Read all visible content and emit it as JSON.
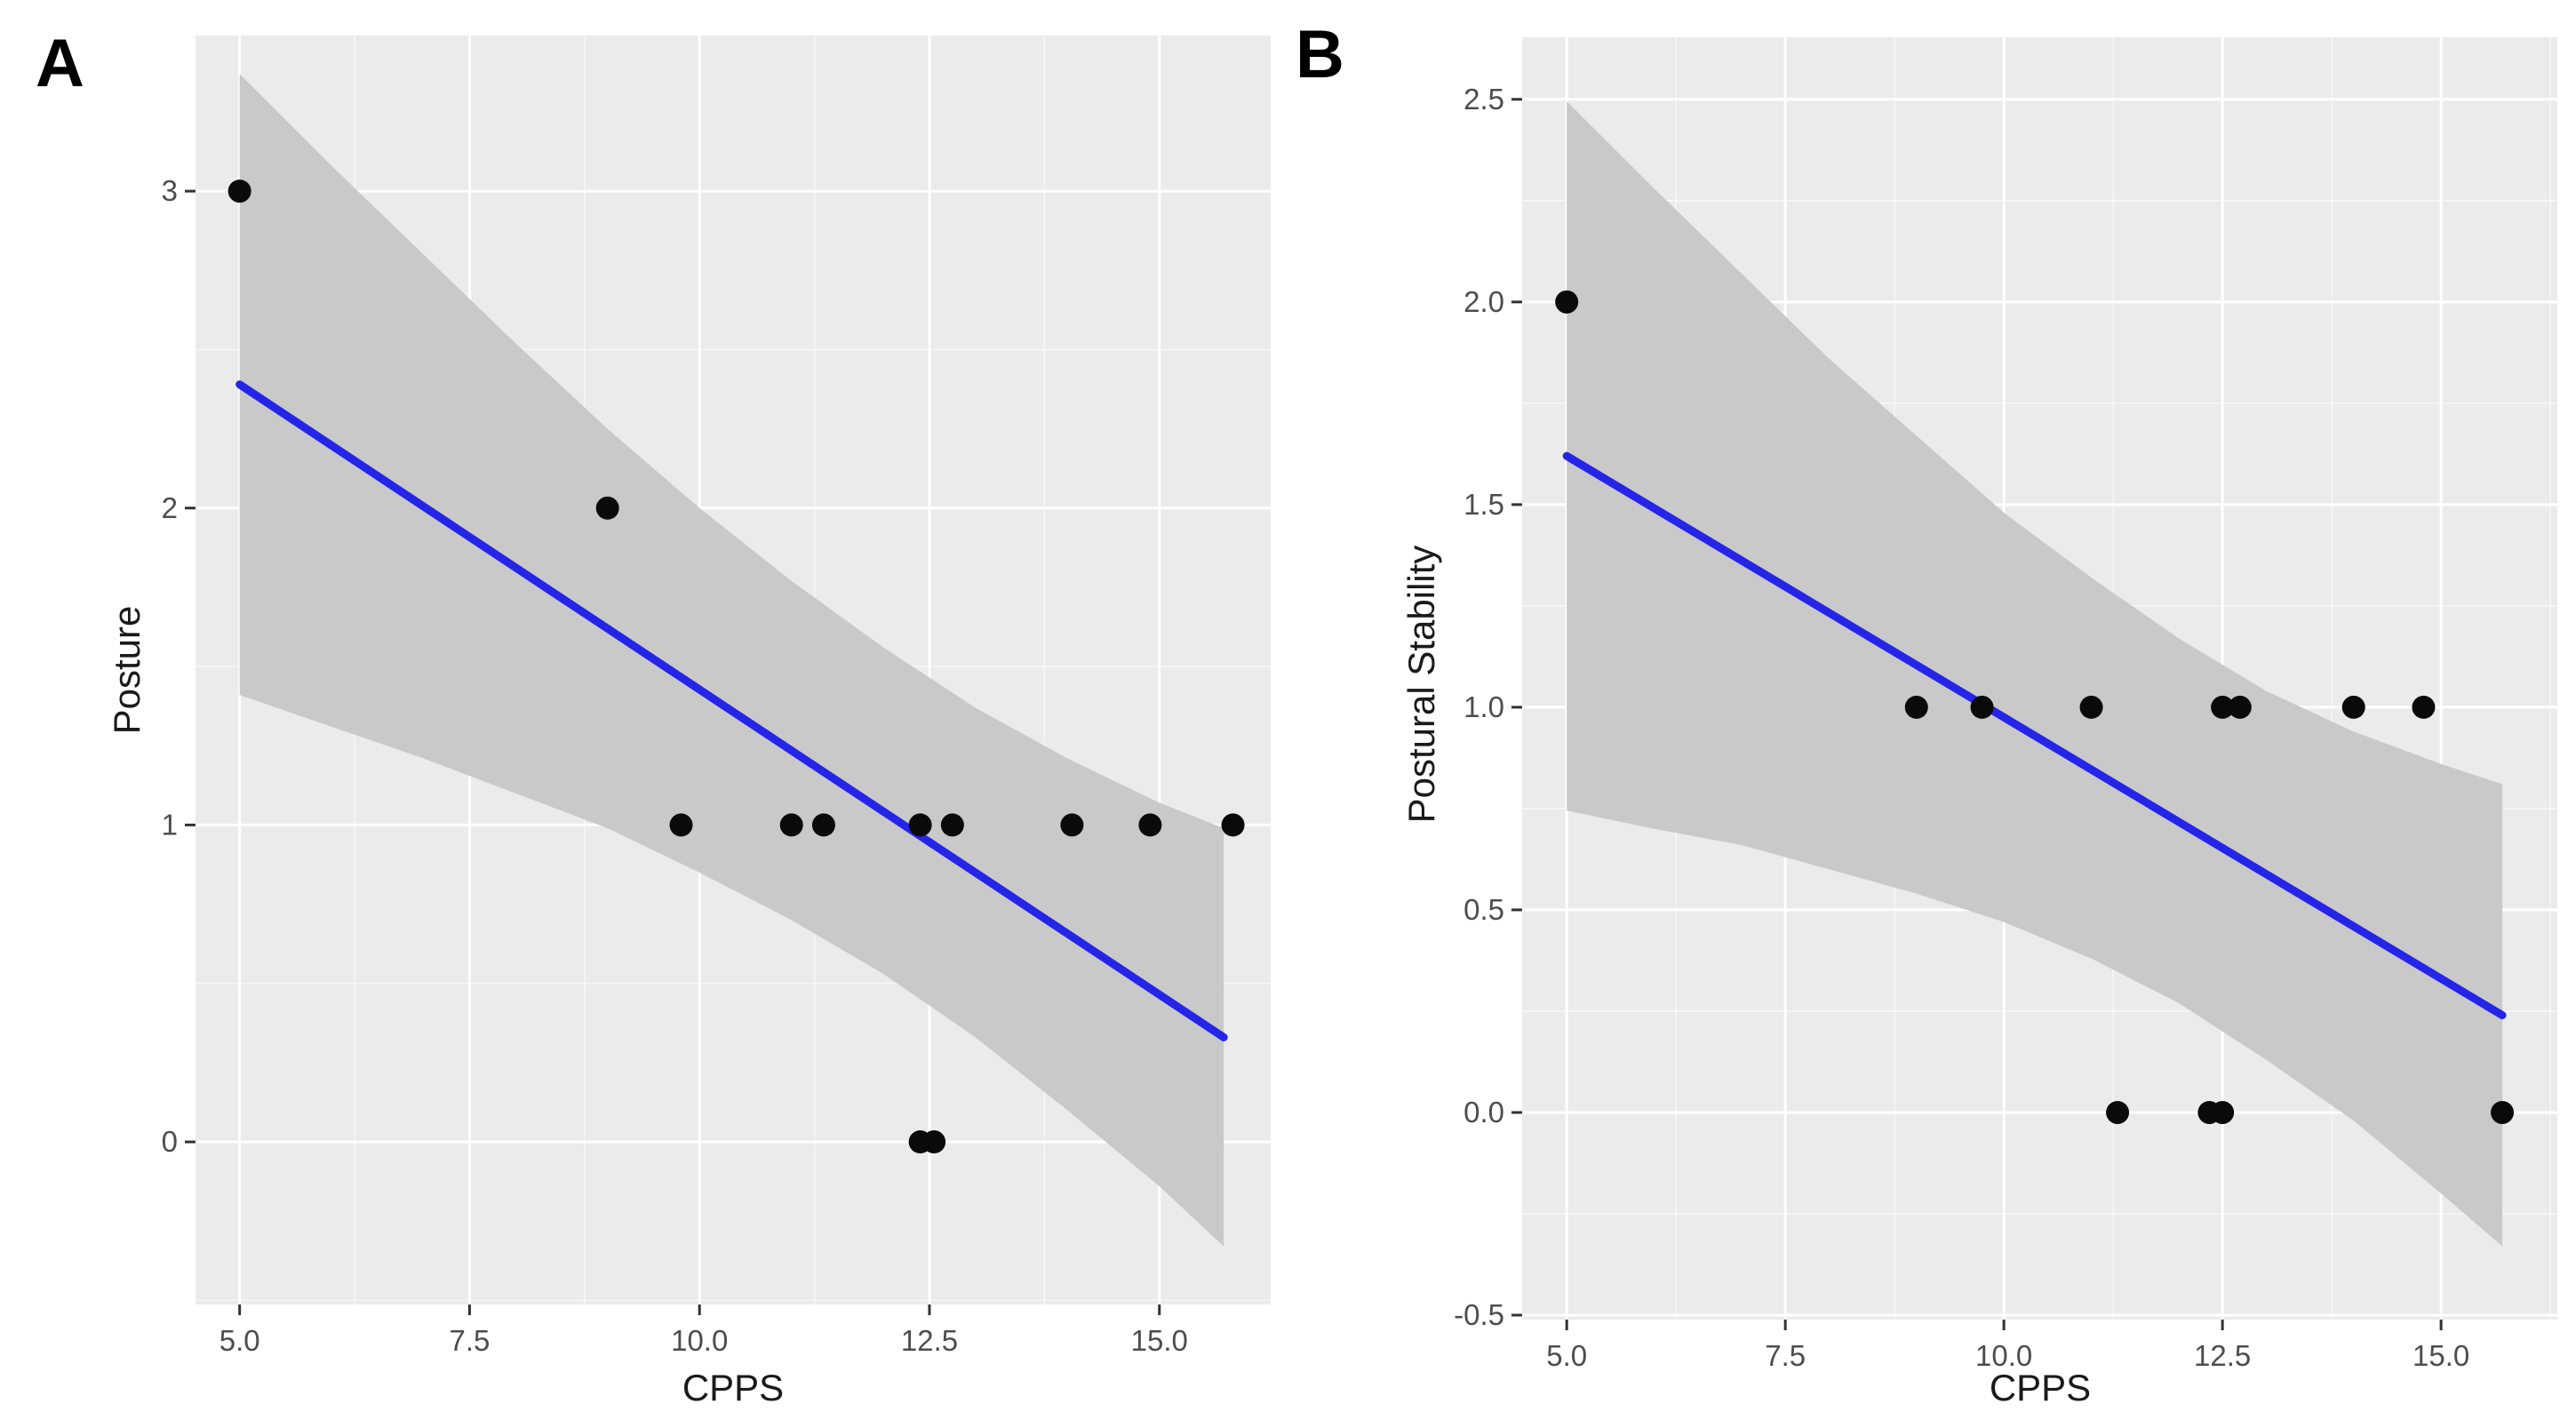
{
  "figure": {
    "background": "#FFFFFF",
    "colors": {
      "panel_background": "#EBEBEB",
      "confidence_band": "#C9C9C9",
      "regression_line": "#2525E8",
      "point": "#0A0A0A",
      "grid_major": "#FFFFFF",
      "grid_minor": "#FFFFFF",
      "tick_mark": "#333333",
      "tick_text": "#4D4D4D",
      "axis_title_text": "#1A1A1A",
      "panel_label_text": "#000000"
    }
  },
  "chart_data": [
    {
      "type": "scatter",
      "panel_label": "A",
      "title": "",
      "xlabel": "CPPS",
      "ylabel": "Posture",
      "xlim": [
        4.52,
        16.21
      ],
      "ylim": [
        -0.513,
        3.491
      ],
      "x_ticks": [
        5.0,
        7.5,
        10.0,
        12.5,
        15.0
      ],
      "x_tick_labels": [
        "5.0",
        "7.5",
        "10.0",
        "12.5",
        "15.0"
      ],
      "y_ticks": [
        0,
        1,
        2,
        3
      ],
      "y_tick_labels": [
        "0",
        "1",
        "2",
        "3"
      ],
      "grid": true,
      "points": [
        [
          5.0,
          3
        ],
        [
          9.0,
          2
        ],
        [
          9.8,
          1
        ],
        [
          11.0,
          1
        ],
        [
          11.35,
          1
        ],
        [
          12.4,
          1
        ],
        [
          12.75,
          1
        ],
        [
          14.05,
          1
        ],
        [
          14.9,
          1
        ],
        [
          15.8,
          1
        ],
        [
          12.4,
          0
        ],
        [
          12.55,
          0
        ]
      ],
      "regression_line": {
        "x": [
          5.0,
          15.7
        ],
        "y": [
          2.39,
          0.33
        ]
      },
      "confidence_band": {
        "x": [
          5.0,
          6.0,
          7.0,
          8.0,
          9.0,
          10.0,
          11.0,
          12.0,
          13.0,
          14.0,
          15.0,
          15.7
        ],
        "upper": [
          3.37,
          3.08,
          2.8,
          2.52,
          2.25,
          2.0,
          1.77,
          1.56,
          1.37,
          1.21,
          1.07,
          0.99
        ],
        "lower": [
          1.41,
          1.31,
          1.21,
          1.1,
          0.99,
          0.85,
          0.7,
          0.53,
          0.33,
          0.1,
          -0.14,
          -0.33
        ]
      }
    },
    {
      "type": "scatter",
      "panel_label": "B",
      "title": "",
      "xlabel": "CPPS",
      "ylabel": "Postural Stability",
      "xlim": [
        4.49,
        16.33
      ],
      "ylim": [
        -0.511,
        2.653
      ],
      "x_ticks": [
        5.0,
        7.5,
        10.0,
        12.5,
        15.0
      ],
      "x_tick_labels": [
        "5.0",
        "7.5",
        "10.0",
        "12.5",
        "15.0"
      ],
      "y_ticks": [
        -0.5,
        0.0,
        0.5,
        1.0,
        1.5,
        2.0,
        2.5
      ],
      "y_tick_labels": [
        "-0.5",
        "0.0",
        "0.5",
        "1.0",
        "1.5",
        "2.0",
        "2.5"
      ],
      "grid": true,
      "points": [
        [
          5.0,
          2
        ],
        [
          9.0,
          1
        ],
        [
          9.75,
          1
        ],
        [
          11.0,
          1
        ],
        [
          12.5,
          1
        ],
        [
          12.7,
          1
        ],
        [
          14.0,
          1
        ],
        [
          14.8,
          1
        ],
        [
          11.3,
          0
        ],
        [
          12.35,
          0
        ],
        [
          12.5,
          0
        ],
        [
          15.7,
          0
        ]
      ],
      "regression_line": {
        "x": [
          5.0,
          15.7
        ],
        "y": [
          1.62,
          0.24
        ]
      },
      "confidence_band": {
        "x": [
          5.0,
          6.0,
          7.0,
          8.0,
          9.0,
          10.0,
          11.0,
          12.0,
          13.0,
          14.0,
          15.0,
          15.7
        ],
        "upper": [
          2.495,
          2.28,
          2.07,
          1.86,
          1.67,
          1.48,
          1.32,
          1.17,
          1.04,
          0.94,
          0.86,
          0.81
        ],
        "lower": [
          0.745,
          0.7,
          0.66,
          0.6,
          0.54,
          0.47,
          0.38,
          0.27,
          0.13,
          -0.02,
          -0.2,
          -0.33
        ]
      }
    }
  ]
}
